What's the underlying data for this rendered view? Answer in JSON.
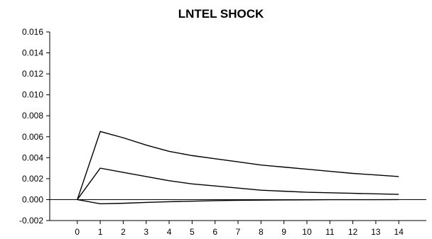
{
  "chart_data": {
    "type": "line",
    "title": "LNTEL SHOCK",
    "x": [
      0,
      1,
      2,
      3,
      4,
      5,
      6,
      7,
      8,
      9,
      10,
      11,
      12,
      13,
      14
    ],
    "ylim": [
      -0.002,
      0.016
    ],
    "xlim": [
      -1.2,
      15.2
    ],
    "y_ticks": [
      "0.016",
      "0.014",
      "0.012",
      "0.010",
      "0.008",
      "0.006",
      "0.004",
      "0.002",
      "0.000",
      "-0.002"
    ],
    "x_ticks": [
      "0",
      "1",
      "2",
      "3",
      "4",
      "5",
      "6",
      "7",
      "8",
      "9",
      "10",
      "11",
      "12",
      "13",
      "14"
    ],
    "zero_line": true,
    "grid": false,
    "series": [
      {
        "values": [
          0,
          0.0065,
          0.0059,
          0.0052,
          0.0046,
          0.0042,
          0.0039,
          0.0036,
          0.0033,
          0.0031,
          0.0029,
          0.0027,
          0.0025,
          0.00235,
          0.0022
        ],
        "color": "#000000"
      },
      {
        "values": [
          0,
          0.003,
          0.0026,
          0.0022,
          0.0018,
          0.0015,
          0.0013,
          0.0011,
          0.0009,
          0.0008,
          0.0007,
          0.00065,
          0.0006,
          0.00055,
          0.0005
        ],
        "color": "#000000"
      },
      {
        "values": [
          0,
          -0.0004,
          -0.00035,
          -0.00027,
          -0.0002,
          -0.00015,
          -0.0001,
          -7e-05,
          -5e-05,
          -3e-05,
          -2e-05,
          -1e-05,
          -1e-05,
          -1e-05,
          0
        ],
        "color": "#000000"
      }
    ]
  }
}
